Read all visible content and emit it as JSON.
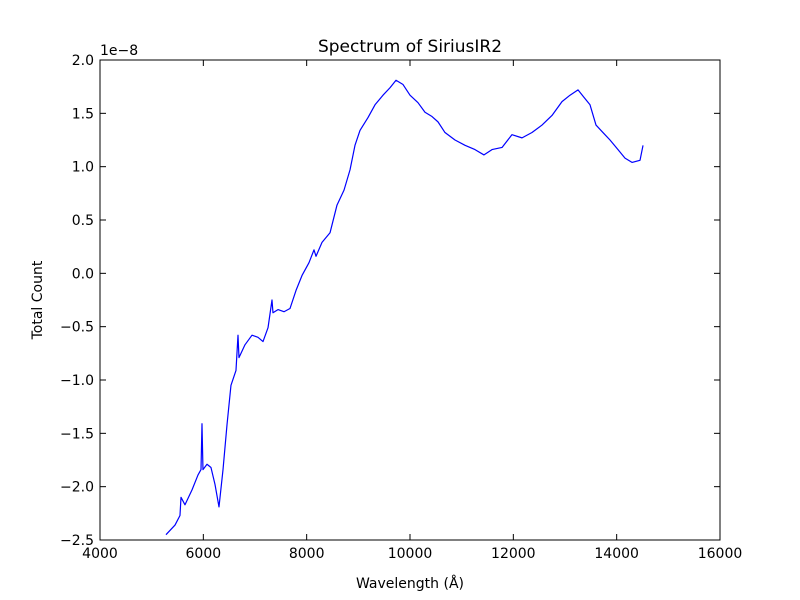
{
  "chart_data": {
    "type": "line",
    "title": "Spectrum of SiriusIR2",
    "x_label": "Wavelength (Å)",
    "y_label": "Total Count",
    "y_offset_label": "1e−8",
    "color": "#0000ff",
    "x": [
      5277,
      5452,
      5548,
      5568,
      5645,
      5781,
      5897,
      5955,
      5974,
      5993,
      6071,
      6148,
      6226,
      6303,
      6381,
      6458,
      6535,
      6632,
      6671,
      6690,
      6806,
      6942,
      7058,
      7155,
      7252,
      7329,
      7348,
      7445,
      7561,
      7677,
      7794,
      7910,
      8045,
      8142,
      8181,
      8297,
      8452,
      8587,
      8723,
      8839,
      8935,
      9032,
      9187,
      9323,
      9477,
      9613,
      9729,
      9865,
      10000,
      10155,
      10290,
      10426,
      10542,
      10677,
      10871,
      11065,
      11258,
      11432,
      11587,
      11781,
      11974,
      12168,
      12361,
      12555,
      12748,
      12942,
      13097,
      13252,
      13368,
      13484,
      13600,
      13735,
      13871,
      14026,
      14161,
      14297,
      14452,
      14510
    ],
    "values": [
      -2.45,
      -2.36,
      -2.27,
      -2.1,
      -2.17,
      -2.03,
      -1.89,
      -1.84,
      -1.41,
      -1.84,
      -1.79,
      -1.82,
      -1.98,
      -2.19,
      -1.84,
      -1.42,
      -1.05,
      -0.91,
      -0.58,
      -0.79,
      -0.67,
      -0.58,
      -0.6,
      -0.64,
      -0.51,
      -0.25,
      -0.37,
      -0.34,
      -0.36,
      -0.33,
      -0.16,
      -0.02,
      0.1,
      0.22,
      0.16,
      0.29,
      0.38,
      0.64,
      0.78,
      0.97,
      1.2,
      1.34,
      1.46,
      1.58,
      1.67,
      1.74,
      1.81,
      1.77,
      1.67,
      1.6,
      1.51,
      1.47,
      1.42,
      1.32,
      1.25,
      1.2,
      1.16,
      1.11,
      1.16,
      1.18,
      1.3,
      1.27,
      1.32,
      1.39,
      1.48,
      1.61,
      1.67,
      1.72,
      1.65,
      1.58,
      1.39,
      1.32,
      1.25,
      1.16,
      1.08,
      1.04,
      1.06,
      1.2
    ],
    "xlim": [
      4000,
      16000
    ],
    "xticks": [
      4000,
      6000,
      8000,
      10000,
      12000,
      14000,
      16000
    ],
    "ylim": [
      -2.5,
      2.0
    ],
    "yticks": [
      {
        "value": -2.5,
        "label": "−2.5"
      },
      {
        "value": -2.0,
        "label": "−2.0"
      },
      {
        "value": -1.5,
        "label": "−1.5"
      },
      {
        "value": -1.0,
        "label": "−1.0"
      },
      {
        "value": -0.5,
        "label": "−0.5"
      },
      {
        "value": 0,
        "label": "0.0"
      },
      {
        "value": 0.5,
        "label": "0.5"
      },
      {
        "value": 1.0,
        "label": "1.0"
      },
      {
        "value": 1.5,
        "label": "1.5"
      },
      {
        "value": 2.0,
        "label": "2.0"
      }
    ],
    "grid": false
  }
}
